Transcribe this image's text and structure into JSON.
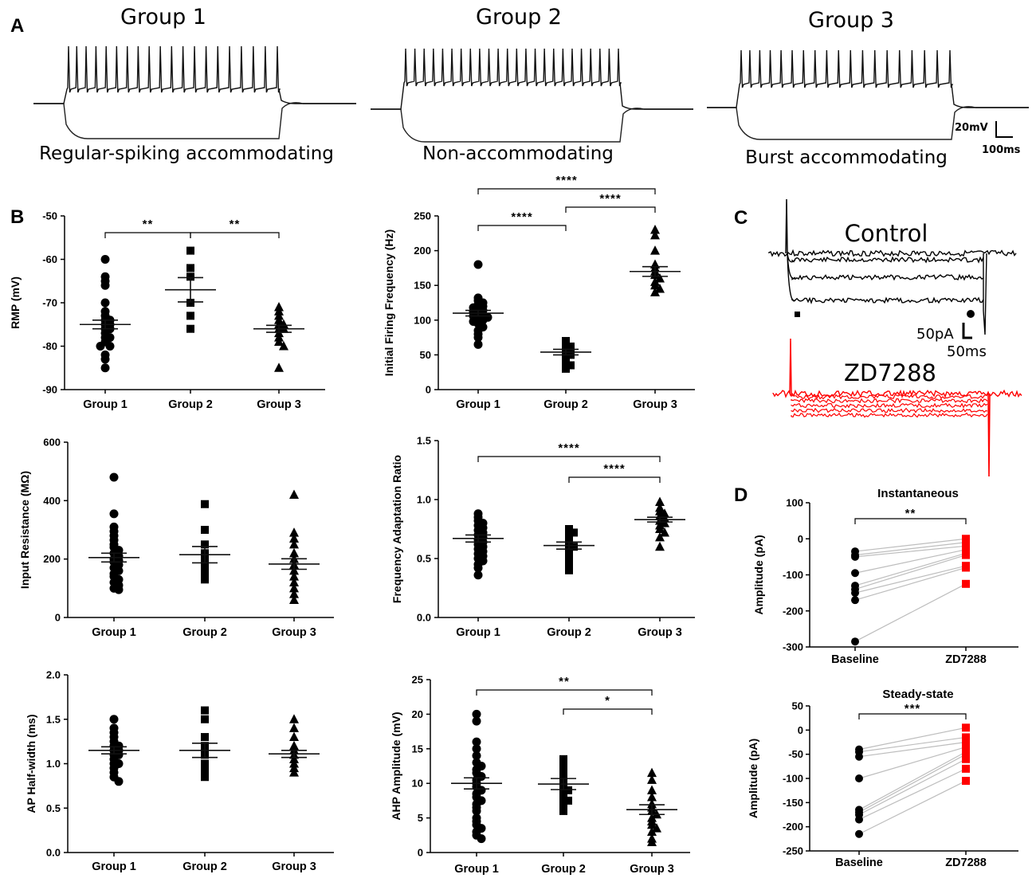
{
  "panels": {
    "A": "A",
    "B": "B",
    "C": "C",
    "D": "D"
  },
  "panel_a": {
    "traces": [
      {
        "group": "Group 1",
        "label": "Regular-spiking accommodating",
        "spikes": 20
      },
      {
        "group": "Group 2",
        "label": "Non-accommodating",
        "spikes": 24
      },
      {
        "group": "Group 3",
        "label": "Burst accommodating",
        "spikes": 19
      }
    ],
    "scale_v": "20mV",
    "scale_t": "100ms"
  },
  "panel_c": {
    "control_label": "Control",
    "drug_label": "ZD7288",
    "scale_i": "50pA",
    "scale_t": "50ms",
    "control_color": "#000000",
    "drug_color": "#ff0000"
  },
  "chart_data": [
    {
      "id": "rmp",
      "type": "scatter",
      "title": "",
      "xlabel": "",
      "ylabel": "RMP (mV)",
      "categories": [
        "Group 1",
        "Group 2",
        "Group 3"
      ],
      "ylim": [
        -90,
        -50
      ],
      "yticks": [
        -50,
        -60,
        -70,
        -80,
        -90
      ],
      "ytick_labels": [
        "-50",
        "-60",
        "-70",
        "-80",
        "-90"
      ],
      "markers": [
        "circle",
        "square",
        "triangle"
      ],
      "means": [
        -75,
        -67,
        -76
      ],
      "sems": [
        1.0,
        2.8,
        0.8
      ],
      "values": [
        [
          -60,
          -64,
          -65,
          -66,
          -70,
          -72,
          -73,
          -74,
          -74,
          -75,
          -75,
          -76,
          -76,
          -77,
          -78,
          -78,
          -79,
          -80,
          -80,
          -82,
          -83,
          -85
        ],
        [
          -58,
          -62,
          -64,
          -70,
          -73,
          -76
        ],
        [
          -71,
          -72,
          -73,
          -74,
          -75,
          -75,
          -76,
          -76,
          -77,
          -78,
          -79,
          -80,
          -85
        ]
      ],
      "significance": [
        {
          "from": 0,
          "to": 1,
          "label": "**",
          "level": 1
        },
        {
          "from": 1,
          "to": 2,
          "label": "**",
          "level": 1
        }
      ]
    },
    {
      "id": "iff",
      "type": "scatter",
      "title": "",
      "xlabel": "",
      "ylabel": "Initial Firing Frequency (Hz)",
      "categories": [
        "Group 1",
        "Group 2",
        "Group 3"
      ],
      "ylim": [
        0,
        250
      ],
      "yticks": [
        0,
        50,
        100,
        150,
        200,
        250
      ],
      "ytick_labels": [
        "0",
        "50",
        "100",
        "150",
        "200",
        "250"
      ],
      "markers": [
        "circle",
        "square",
        "triangle"
      ],
      "means": [
        110,
        54,
        170
      ],
      "sems": [
        4,
        4,
        7
      ],
      "values": [
        [
          180,
          132,
          128,
          125,
          122,
          120,
          118,
          116,
          114,
          112,
          110,
          108,
          106,
          104,
          102,
          100,
          98,
          95,
          90,
          85,
          80,
          75,
          65
        ],
        [
          70,
          66,
          62,
          58,
          56,
          54,
          50,
          45,
          40,
          35,
          30
        ],
        [
          230,
          222,
          200,
          180,
          175,
          170,
          165,
          160,
          155,
          150,
          145,
          140
        ]
      ],
      "significance": [
        {
          "from": 0,
          "to": 1,
          "label": "****",
          "level": 1
        },
        {
          "from": 1,
          "to": 2,
          "label": "****",
          "level": 2
        },
        {
          "from": 0,
          "to": 2,
          "label": "****",
          "level": 3
        }
      ]
    },
    {
      "id": "rin",
      "type": "scatter",
      "title": "",
      "xlabel": "",
      "ylabel": "Input Resistance (MΩ)",
      "categories": [
        "Group 1",
        "Group 2",
        "Group 3"
      ],
      "ylim": [
        0,
        600
      ],
      "yticks": [
        0,
        200,
        400,
        600
      ],
      "ytick_labels": [
        "0",
        "200",
        "400",
        "600"
      ],
      "markers": [
        "circle",
        "square",
        "triangle"
      ],
      "means": [
        205,
        215,
        183
      ],
      "sems": [
        15,
        28,
        18
      ],
      "values": [
        [
          480,
          355,
          310,
          295,
          280,
          265,
          250,
          240,
          230,
          220,
          210,
          200,
          195,
          190,
          180,
          170,
          160,
          150,
          140,
          130,
          120,
          110,
          100,
          95
        ],
        [
          388,
          300,
          250,
          220,
          200,
          180,
          160,
          145,
          130
        ],
        [
          420,
          290,
          270,
          250,
          220,
          200,
          180,
          160,
          140,
          120,
          100,
          80,
          60
        ]
      ],
      "significance": []
    },
    {
      "id": "far",
      "type": "scatter",
      "title": "",
      "xlabel": "",
      "ylabel": "Frequency Adaptation Ratio",
      "categories": [
        "Group 1",
        "Group 2",
        "Group 3"
      ],
      "ylim": [
        0,
        1.5
      ],
      "yticks": [
        0,
        0.5,
        1.0,
        1.5
      ],
      "ytick_labels": [
        "0.0",
        "0.5",
        "1.0",
        "1.5"
      ],
      "markers": [
        "circle",
        "square",
        "triangle"
      ],
      "means": [
        0.67,
        0.61,
        0.83
      ],
      "sems": [
        0.03,
        0.03,
        0.02
      ],
      "values": [
        [
          0.88,
          0.85,
          0.82,
          0.8,
          0.78,
          0.76,
          0.74,
          0.72,
          0.7,
          0.68,
          0.66,
          0.64,
          0.62,
          0.6,
          0.58,
          0.56,
          0.54,
          0.52,
          0.5,
          0.48,
          0.45,
          0.42,
          0.36
        ],
        [
          0.75,
          0.72,
          0.7,
          0.66,
          0.63,
          0.6,
          0.58,
          0.55,
          0.5,
          0.45,
          0.4
        ],
        [
          0.98,
          0.93,
          0.9,
          0.88,
          0.86,
          0.84,
          0.82,
          0.8,
          0.78,
          0.75,
          0.72,
          0.68,
          0.6
        ]
      ],
      "significance": [
        {
          "from": 1,
          "to": 2,
          "label": "****",
          "level": 1
        },
        {
          "from": 0,
          "to": 2,
          "label": "****",
          "level": 2
        }
      ]
    },
    {
      "id": "aphw",
      "type": "scatter",
      "title": "",
      "xlabel": "",
      "ylabel": "AP Half-width (ms)",
      "categories": [
        "Group 1",
        "Group 2",
        "Group 3"
      ],
      "ylim": [
        0,
        2.0
      ],
      "yticks": [
        0,
        0.5,
        1.0,
        1.5,
        2.0
      ],
      "ytick_labels": [
        "0.0",
        "0.5",
        "1.0",
        "1.5",
        "2.0"
      ],
      "markers": [
        "circle",
        "square",
        "triangle"
      ],
      "means": [
        1.15,
        1.15,
        1.11
      ],
      "sems": [
        0.04,
        0.08,
        0.04
      ],
      "values": [
        [
          1.5,
          1.4,
          1.35,
          1.3,
          1.25,
          1.2,
          1.2,
          1.15,
          1.15,
          1.1,
          1.1,
          1.05,
          1.0,
          1.0,
          0.95,
          0.9,
          0.85,
          0.8
        ],
        [
          1.6,
          1.5,
          1.3,
          1.2,
          1.1,
          1.0,
          0.95,
          0.9,
          0.85
        ],
        [
          1.5,
          1.4,
          1.3,
          1.2,
          1.15,
          1.1,
          1.05,
          1.0,
          0.95,
          0.9
        ]
      ],
      "significance": []
    },
    {
      "id": "ahp",
      "type": "scatter",
      "title": "",
      "xlabel": "",
      "ylabel": "AHP Amplitude (mV)",
      "categories": [
        "Group 1",
        "Group 2",
        "Group 3"
      ],
      "ylim": [
        0,
        25
      ],
      "yticks": [
        0,
        5,
        10,
        15,
        20,
        25
      ],
      "ytick_labels": [
        "0",
        "5",
        "10",
        "15",
        "20",
        "25"
      ],
      "markers": [
        "circle",
        "square",
        "triangle"
      ],
      "means": [
        10,
        9.9,
        6.2
      ],
      "sems": [
        0.8,
        0.8,
        0.7
      ],
      "values": [
        [
          20,
          19,
          16,
          15,
          14,
          13,
          12.5,
          12,
          11.5,
          11,
          10.5,
          10,
          9.5,
          9,
          8.5,
          8,
          7.5,
          7,
          6.5,
          6,
          5,
          4.5,
          4,
          3.5,
          3,
          2.5,
          2
        ],
        [
          13.5,
          13,
          12,
          11,
          10.5,
          10,
          9.5,
          9,
          8.5,
          8,
          7.5,
          7,
          6.5,
          6
        ],
        [
          11.5,
          10.5,
          9,
          8,
          7,
          6.5,
          6,
          5.5,
          5,
          4.5,
          4,
          3.5,
          3,
          2,
          1.5
        ]
      ],
      "significance": [
        {
          "from": 1,
          "to": 2,
          "label": "*",
          "level": 1
        },
        {
          "from": 0,
          "to": 2,
          "label": "**",
          "level": 2
        }
      ]
    },
    {
      "id": "inst",
      "type": "line",
      "title": "Instantaneous",
      "xlabel": "",
      "ylabel": "Amplitude (pA)",
      "categories": [
        "Baseline",
        "ZD7288"
      ],
      "ylim": [
        -300,
        100
      ],
      "yticks": [
        100,
        0,
        -100,
        -200,
        -300
      ],
      "ytick_labels": [
        "100",
        "0",
        "-100",
        "-200",
        "-300"
      ],
      "baseline": [
        -35,
        -45,
        -50,
        -95,
        -130,
        -140,
        -150,
        -170,
        -285
      ],
      "zd7288": [
        0,
        -10,
        -20,
        -30,
        -40,
        -45,
        -75,
        -80,
        -125
      ],
      "significance_label": "**"
    },
    {
      "id": "steady",
      "type": "line",
      "title": "Steady-state",
      "xlabel": "",
      "ylabel": "Amplitude (pA)",
      "categories": [
        "Baseline",
        "ZD7288"
      ],
      "ylim": [
        -250,
        50
      ],
      "yticks": [
        50,
        0,
        -50,
        -100,
        -150,
        -200,
        -250
      ],
      "ytick_labels": [
        "50",
        "0",
        "-50",
        "-100",
        "-150",
        "-200",
        "-250"
      ],
      "baseline": [
        -40,
        -45,
        -55,
        -100,
        -165,
        -170,
        -175,
        -185,
        -215
      ],
      "zd7288": [
        5,
        -15,
        -25,
        -35,
        -45,
        -50,
        -60,
        -80,
        -105
      ],
      "significance_label": "***"
    }
  ]
}
